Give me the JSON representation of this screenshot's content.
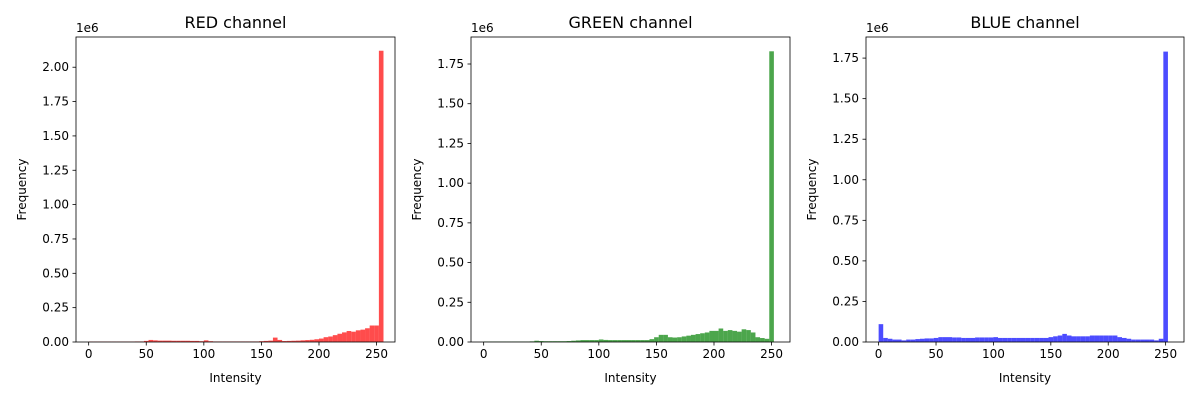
{
  "chart_data": [
    {
      "type": "bar",
      "title": "RED channel",
      "xlabel": "Intensity",
      "ylabel": "Frequency",
      "offset_text": "1e6",
      "color": "#ff0000",
      "alpha": 0.7,
      "bin_width": 4,
      "xlim": [
        -11,
        266
      ],
      "ylim": [
        0,
        2.22
      ],
      "xticks": [
        0,
        50,
        100,
        150,
        200,
        250
      ],
      "yticks": [
        0.0,
        0.25,
        0.5,
        0.75,
        1.0,
        1.25,
        1.5,
        1.75,
        2.0
      ],
      "ytick_labels": [
        "0.00",
        "0.25",
        "0.50",
        "0.75",
        "1.00",
        "1.25",
        "1.50",
        "1.75",
        "2.00"
      ],
      "bin_start": [
        0,
        4,
        8,
        12,
        16,
        20,
        24,
        28,
        32,
        36,
        40,
        44,
        48,
        52,
        56,
        60,
        64,
        68,
        72,
        76,
        80,
        84,
        88,
        92,
        96,
        100,
        104,
        108,
        112,
        116,
        120,
        124,
        128,
        132,
        136,
        140,
        144,
        148,
        152,
        156,
        160,
        164,
        168,
        172,
        176,
        180,
        184,
        188,
        192,
        196,
        200,
        204,
        208,
        212,
        216,
        220,
        224,
        228,
        232,
        236,
        240,
        244,
        248,
        252
      ],
      "values": [
        0.003,
        0.003,
        0.003,
        0.003,
        0.003,
        0.003,
        0.003,
        0.003,
        0.003,
        0.003,
        0.004,
        0.004,
        0.008,
        0.015,
        0.012,
        0.01,
        0.01,
        0.01,
        0.009,
        0.009,
        0.009,
        0.009,
        0.008,
        0.008,
        0.006,
        0.012,
        0.006,
        0.004,
        0.004,
        0.004,
        0.004,
        0.004,
        0.004,
        0.004,
        0.004,
        0.004,
        0.004,
        0.006,
        0.008,
        0.01,
        0.032,
        0.015,
        0.007,
        0.008,
        0.009,
        0.01,
        0.012,
        0.014,
        0.016,
        0.02,
        0.025,
        0.035,
        0.04,
        0.05,
        0.06,
        0.07,
        0.08,
        0.075,
        0.085,
        0.09,
        0.1,
        0.12,
        0.12,
        2.12
      ]
    },
    {
      "type": "bar",
      "title": "GREEN channel",
      "xlabel": "Intensity",
      "ylabel": "Frequency",
      "offset_text": "1e6",
      "color": "#008000",
      "alpha": 0.7,
      "bin_width": 4,
      "xlim": [
        -11,
        266
      ],
      "ylim": [
        0,
        1.92
      ],
      "xticks": [
        0,
        50,
        100,
        150,
        200,
        250
      ],
      "yticks": [
        0.0,
        0.25,
        0.5,
        0.75,
        1.0,
        1.25,
        1.5,
        1.75
      ],
      "ytick_labels": [
        "0.00",
        "0.25",
        "0.50",
        "0.75",
        "1.00",
        "1.25",
        "1.50",
        "1.75"
      ],
      "bin_start": [
        0,
        4,
        8,
        12,
        16,
        20,
        24,
        28,
        32,
        36,
        40,
        44,
        48,
        52,
        56,
        60,
        64,
        68,
        72,
        76,
        80,
        84,
        88,
        92,
        96,
        100,
        104,
        108,
        112,
        116,
        120,
        124,
        128,
        132,
        136,
        140,
        144,
        148,
        152,
        156,
        160,
        164,
        168,
        172,
        176,
        180,
        184,
        188,
        192,
        196,
        200,
        204,
        208,
        212,
        216,
        220,
        224,
        228,
        232,
        236,
        240,
        244,
        248,
        252
      ],
      "values": [
        0.003,
        0.003,
        0.003,
        0.003,
        0.003,
        0.003,
        0.003,
        0.003,
        0.003,
        0.003,
        0.004,
        0.008,
        0.006,
        0.005,
        0.005,
        0.005,
        0.005,
        0.005,
        0.006,
        0.008,
        0.01,
        0.012,
        0.012,
        0.012,
        0.012,
        0.016,
        0.013,
        0.012,
        0.012,
        0.012,
        0.012,
        0.012,
        0.012,
        0.012,
        0.012,
        0.012,
        0.018,
        0.03,
        0.045,
        0.045,
        0.03,
        0.028,
        0.03,
        0.035,
        0.04,
        0.045,
        0.05,
        0.055,
        0.06,
        0.07,
        0.07,
        0.085,
        0.07,
        0.075,
        0.07,
        0.065,
        0.08,
        0.075,
        0.06,
        0.03,
        0.025,
        0.02,
        1.83,
        0.0
      ]
    },
    {
      "type": "bar",
      "title": "BLUE channel",
      "xlabel": "Intensity",
      "ylabel": "Frequency",
      "offset_text": "1e6",
      "color": "#0000ff",
      "alpha": 0.7,
      "bin_width": 4,
      "xlim": [
        -11,
        266
      ],
      "ylim": [
        0,
        1.88
      ],
      "xticks": [
        0,
        50,
        100,
        150,
        200,
        250
      ],
      "yticks": [
        0.0,
        0.25,
        0.5,
        0.75,
        1.0,
        1.25,
        1.5,
        1.75
      ],
      "ytick_labels": [
        "0.00",
        "0.25",
        "0.50",
        "0.75",
        "1.00",
        "1.25",
        "1.50",
        "1.75"
      ],
      "bin_start": [
        0,
        4,
        8,
        12,
        16,
        20,
        24,
        28,
        32,
        36,
        40,
        44,
        48,
        52,
        56,
        60,
        64,
        68,
        72,
        76,
        80,
        84,
        88,
        92,
        96,
        100,
        104,
        108,
        112,
        116,
        120,
        124,
        128,
        132,
        136,
        140,
        144,
        148,
        152,
        156,
        160,
        164,
        168,
        172,
        176,
        180,
        184,
        188,
        192,
        196,
        200,
        204,
        208,
        212,
        216,
        220,
        224,
        228,
        232,
        236,
        240,
        244,
        248,
        252
      ],
      "values": [
        0.11,
        0.025,
        0.02,
        0.015,
        0.015,
        0.01,
        0.015,
        0.015,
        0.018,
        0.02,
        0.022,
        0.022,
        0.025,
        0.03,
        0.03,
        0.03,
        0.028,
        0.028,
        0.025,
        0.025,
        0.025,
        0.028,
        0.028,
        0.028,
        0.028,
        0.03,
        0.025,
        0.025,
        0.025,
        0.025,
        0.025,
        0.025,
        0.025,
        0.025,
        0.025,
        0.025,
        0.025,
        0.03,
        0.035,
        0.04,
        0.05,
        0.04,
        0.035,
        0.035,
        0.035,
        0.035,
        0.04,
        0.04,
        0.04,
        0.04,
        0.04,
        0.04,
        0.03,
        0.025,
        0.02,
        0.015,
        0.015,
        0.015,
        0.015,
        0.015,
        0.01,
        0.02,
        1.79,
        0.0
      ]
    }
  ]
}
